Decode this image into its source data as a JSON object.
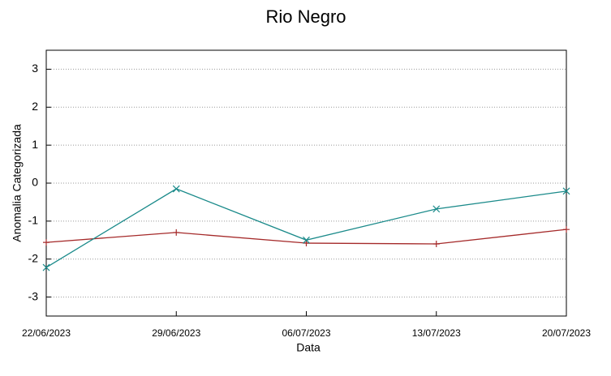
{
  "chart_data": {
    "type": "line",
    "title": "Rio Negro",
    "xlabel": "Data",
    "ylabel": "Anomalia Categorizada",
    "categories": [
      "22/06/2023",
      "29/06/2023",
      "06/07/2023",
      "13/07/2023",
      "20/07/2023"
    ],
    "series": [
      {
        "color": "#a52a2a",
        "marker": "+",
        "values": [
          -1.56,
          -1.3,
          -1.58,
          -1.6,
          -1.22
        ]
      },
      {
        "color": "#1a8a8a",
        "marker": "x",
        "values": [
          -2.22,
          -0.15,
          -1.5,
          -0.68,
          -0.21
        ]
      }
    ],
    "ylim": [
      -3.5,
      3.5
    ],
    "yticks": [
      -3,
      -2,
      -1,
      0,
      1,
      2,
      3
    ],
    "grid": true
  }
}
